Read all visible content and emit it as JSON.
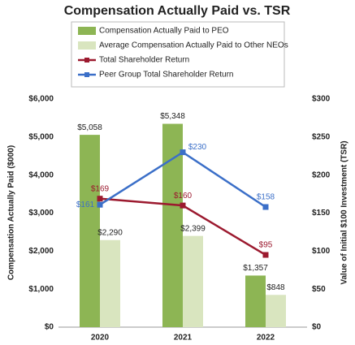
{
  "chart_data": {
    "type": "combo",
    "title": "Compensation Actually Paid vs. TSR",
    "y_label": "Compensation Actually Paid ($000)",
    "y2_label": "Value of Initial $100 Investment (TSR)",
    "categories": [
      "2020",
      "2021",
      "2022"
    ],
    "ylim": [
      0,
      6000
    ],
    "yticks": [
      {
        "value": 0,
        "label": "$0"
      },
      {
        "value": 1000,
        "label": "$1,000"
      },
      {
        "value": 2000,
        "label": "$2,000"
      },
      {
        "value": 3000,
        "label": "$3,000"
      },
      {
        "value": 4000,
        "label": "$4,000"
      },
      {
        "value": 5000,
        "label": "$5,000"
      },
      {
        "value": 6000,
        "label": "$6,000"
      }
    ],
    "y2lim": [
      0,
      300
    ],
    "y2ticks": [
      {
        "value": 0,
        "label": "$0"
      },
      {
        "value": 50,
        "label": "$50"
      },
      {
        "value": 100,
        "label": "$100"
      },
      {
        "value": 150,
        "label": "$150"
      },
      {
        "value": 200,
        "label": "$200"
      },
      {
        "value": 250,
        "label": "$250"
      },
      {
        "value": 300,
        "label": "$300"
      }
    ],
    "grid": false,
    "series": [
      {
        "name": "Compensation Actually Paid to PEO",
        "type": "bar",
        "color": "#8db554",
        "values": [
          5058,
          5348,
          1357
        ],
        "value_labels": [
          "$5,058",
          "$5,348",
          "$1,357"
        ]
      },
      {
        "name": "Average Compensation Actually Paid to Other NEOs",
        "type": "bar",
        "color": "#d9e5bf",
        "values": [
          2290,
          2399,
          848
        ],
        "value_labels": [
          "$2,290",
          "$2,399",
          "$848"
        ]
      },
      {
        "name": "Total Shareholder Return",
        "type": "line",
        "axis": "y2",
        "color": "#9c1a2f",
        "values": [
          169,
          160,
          95
        ],
        "value_labels": [
          "$169",
          "$160",
          "$95"
        ]
      },
      {
        "name": "Peer Group Total Shareholder Return",
        "type": "line",
        "axis": "y2",
        "color": "#3b6fc8",
        "values": [
          161,
          230,
          158
        ],
        "value_labels": [
          "$161",
          "$230",
          "$158"
        ]
      }
    ]
  }
}
